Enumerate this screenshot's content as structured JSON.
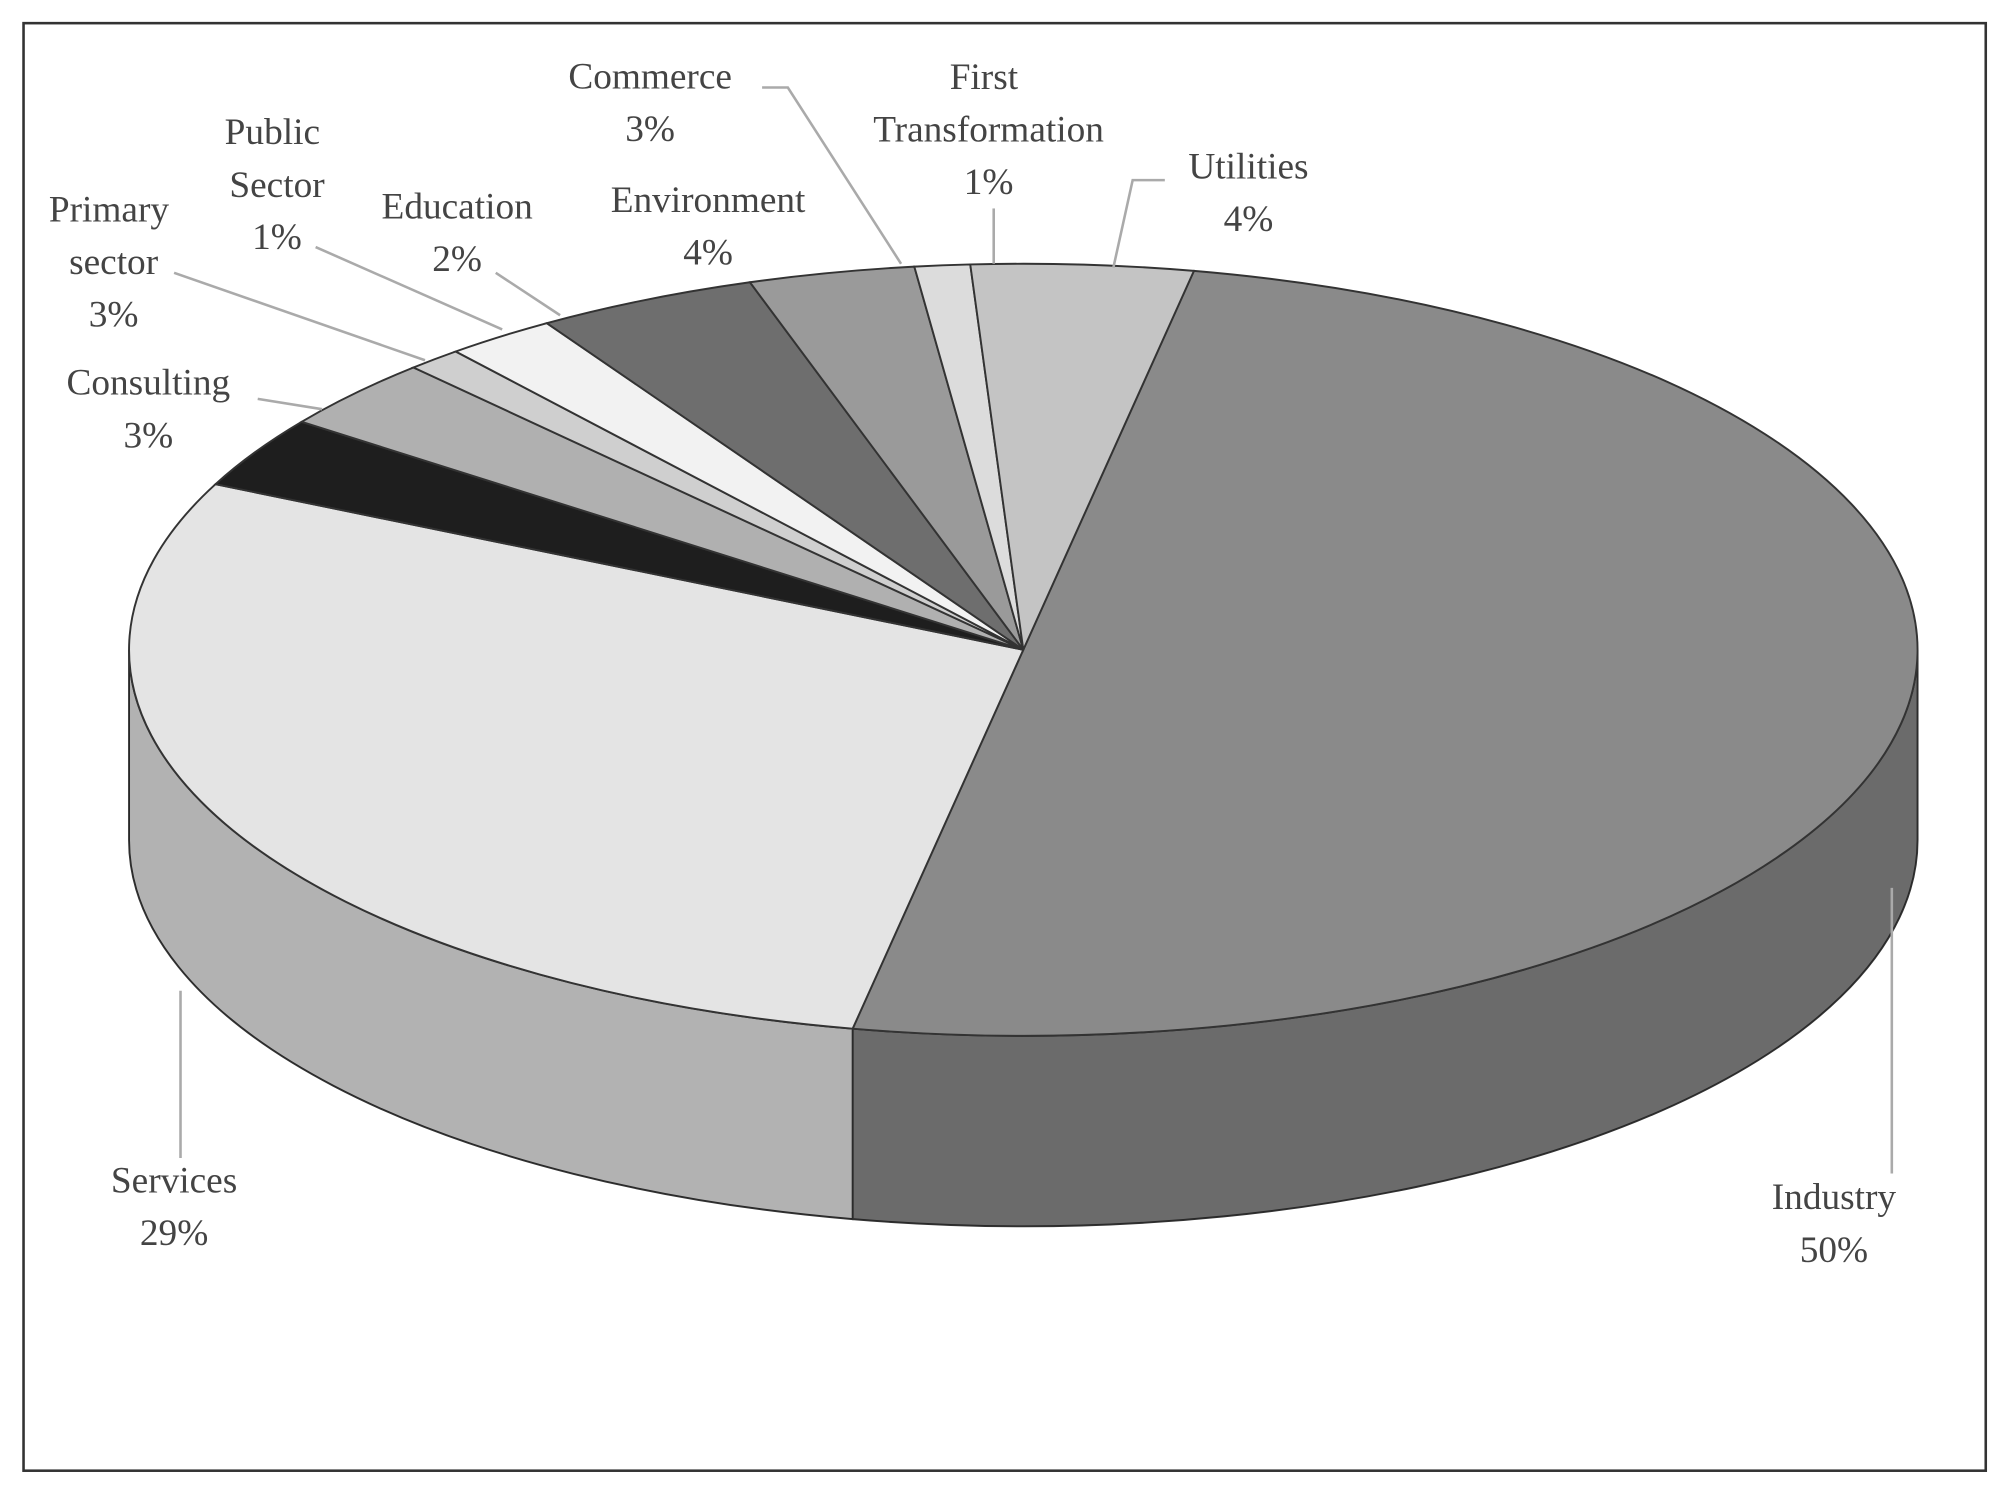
{
  "chart_data": {
    "type": "pie3d",
    "categories": [
      "Industry",
      "Services",
      "Consulting",
      "Primary sector",
      "Public Sector",
      "Education",
      "Environment",
      "Commerce",
      "First Transformation",
      "Utilities"
    ],
    "values": [
      50,
      29,
      3,
      3,
      1,
      2,
      4,
      3,
      1,
      4
    ],
    "value_labels": [
      "50%",
      "29%",
      "3%",
      "3%",
      "1%",
      "2%",
      "4%",
      "3%",
      "1%",
      "4%"
    ],
    "colors": [
      "#8a8a8a",
      "#e4e4e4",
      "#1e1e1e",
      "#b0b0b0",
      "#cfcfcf",
      "#f2f2f2",
      "#6e6e6e",
      "#9a9a9a",
      "#dcdcdc",
      "#c4c4c4"
    ]
  }
}
